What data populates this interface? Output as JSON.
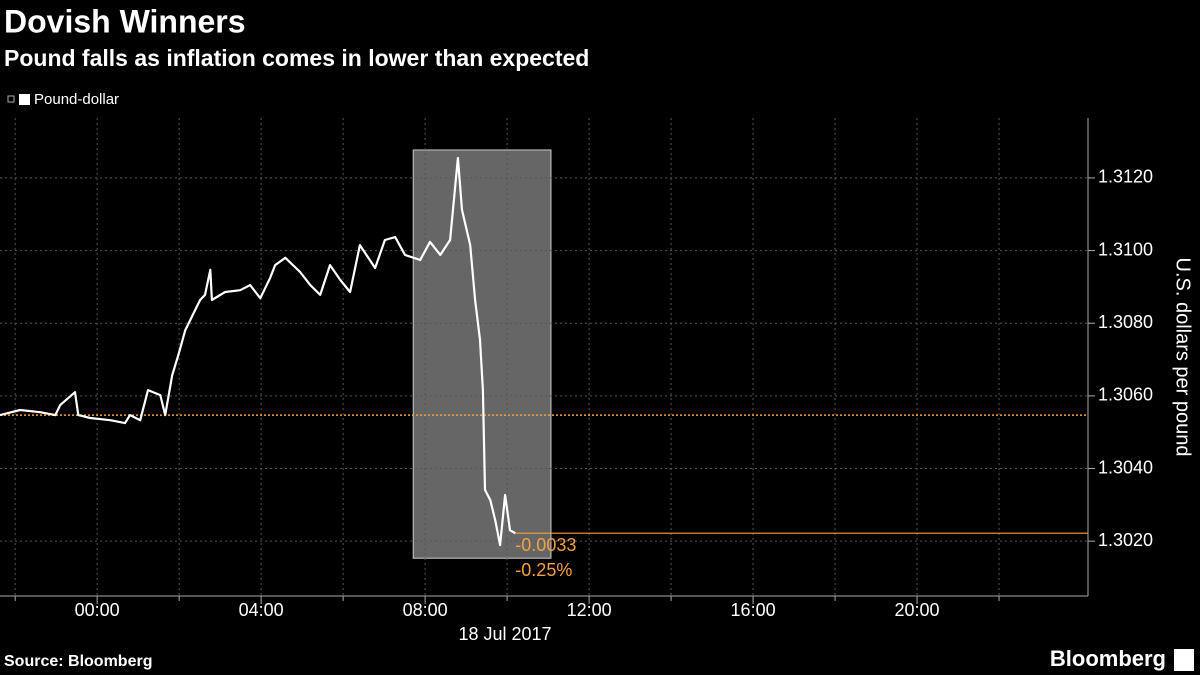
{
  "chart_data": {
    "type": "line",
    "title": "Dovish Winners",
    "subtitle": "Pound falls as inflation comes in lower than expected",
    "y_axis_label": "U.S. dollars per pound",
    "x_axis_label": "18 Jul 2017",
    "source": "Source: Bloomberg",
    "brand": "Bloomberg",
    "annotations": [
      "-0.0033",
      "-0.25%"
    ],
    "annotation_color": "#f5a142",
    "reference_line": 1.30547,
    "highlight": {
      "x": [
        7.71,
        11.07
      ],
      "y": [
        1.31277,
        1.30153
      ],
      "color": "#666666"
    },
    "series": [
      {
        "name": "Pound-dollar",
        "color": "#ffffff",
        "x": [
          -2.37,
          -1.88,
          -1.39,
          -1.02,
          -0.9,
          -0.54,
          -0.46,
          -0.17,
          0.32,
          0.68,
          0.8,
          1.05,
          1.24,
          1.54,
          1.66,
          1.83,
          1.98,
          2.15,
          2.39,
          2.51,
          2.63,
          2.76,
          2.8,
          3.12,
          3.49,
          3.73,
          3.98,
          4.22,
          4.34,
          4.59,
          4.95,
          5.2,
          5.44,
          5.68,
          5.93,
          6.17,
          6.41,
          6.78,
          7.02,
          7.27,
          7.51,
          7.88,
          8.12,
          8.37,
          8.61,
          8.8,
          8.9,
          9.1,
          9.22,
          9.34,
          9.41,
          9.46,
          9.59,
          9.71,
          9.83,
          9.95,
          10.07,
          10.2
        ],
        "values": [
          1.30547,
          1.30561,
          1.30555,
          1.30547,
          1.30575,
          1.3061,
          1.30547,
          1.30539,
          1.30533,
          1.30525,
          1.30547,
          1.30533,
          1.30616,
          1.30602,
          1.30547,
          1.30657,
          1.30712,
          1.30781,
          1.30836,
          1.30864,
          1.30878,
          1.30947,
          1.30864,
          1.30886,
          1.30891,
          1.30905,
          1.30869,
          1.30925,
          1.3096,
          1.3098,
          1.30941,
          1.30905,
          1.30878,
          1.3096,
          1.30919,
          1.30886,
          1.31015,
          1.30952,
          1.31029,
          1.31037,
          1.30988,
          1.30974,
          1.31024,
          1.30988,
          1.31029,
          1.31255,
          1.31112,
          1.31015,
          1.30864,
          1.30754,
          1.30616,
          1.30341,
          1.30313,
          1.30258,
          1.30189,
          1.30327,
          1.3023,
          1.30222
        ]
      }
    ],
    "xlim": [
      -2.37,
      24.17
    ],
    "xticks": [
      {
        "value": 0,
        "label": "00:00"
      },
      {
        "value": 4,
        "label": "04:00"
      },
      {
        "value": 8,
        "label": "08:00"
      },
      {
        "value": 12,
        "label": "12:00"
      },
      {
        "value": 16,
        "label": "16:00"
      },
      {
        "value": 20,
        "label": "20:00"
      }
    ],
    "x_minor_ticks": [
      -2,
      2,
      6,
      10,
      14,
      18,
      22
    ],
    "ylim": [
      1.30049,
      1.31365
    ],
    "yticks": [
      {
        "value": 1.302,
        "label": "1.3020"
      },
      {
        "value": 1.304,
        "label": "1.3040"
      },
      {
        "value": 1.306,
        "label": "1.3060"
      },
      {
        "value": 1.308,
        "label": "1.3080"
      },
      {
        "value": 1.31,
        "label": "1.3100"
      },
      {
        "value": 1.312,
        "label": "1.3120"
      }
    ],
    "grid": true
  }
}
